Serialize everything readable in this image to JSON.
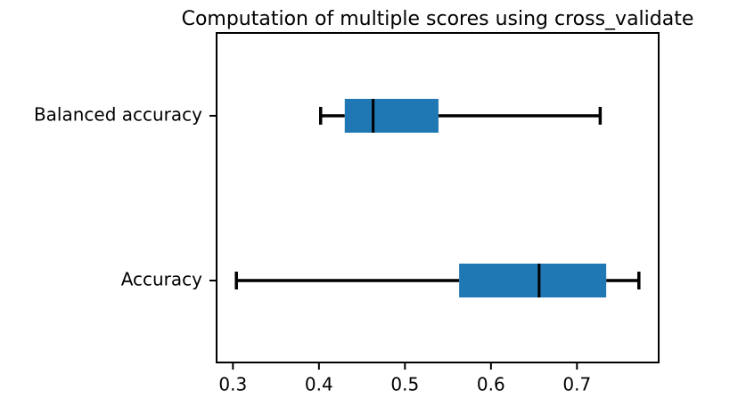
{
  "chart_data": {
    "type": "boxplot",
    "orientation": "horizontal",
    "title": "Computation of multiple scores using cross_validate",
    "categories": [
      "Accuracy",
      "Balanced accuracy"
    ],
    "boxes": [
      {
        "min": 0.304,
        "q1": 0.563,
        "median": 0.656,
        "q3": 0.734,
        "max": 0.772
      },
      {
        "min": 0.402,
        "q1": 0.43,
        "median": 0.463,
        "q3": 0.539,
        "max": 0.727
      }
    ],
    "color": "#1f77b4",
    "xlim": [
      0.281,
      0.795
    ],
    "xticks": [
      0.3,
      0.4,
      0.5,
      0.6,
      0.7
    ]
  }
}
